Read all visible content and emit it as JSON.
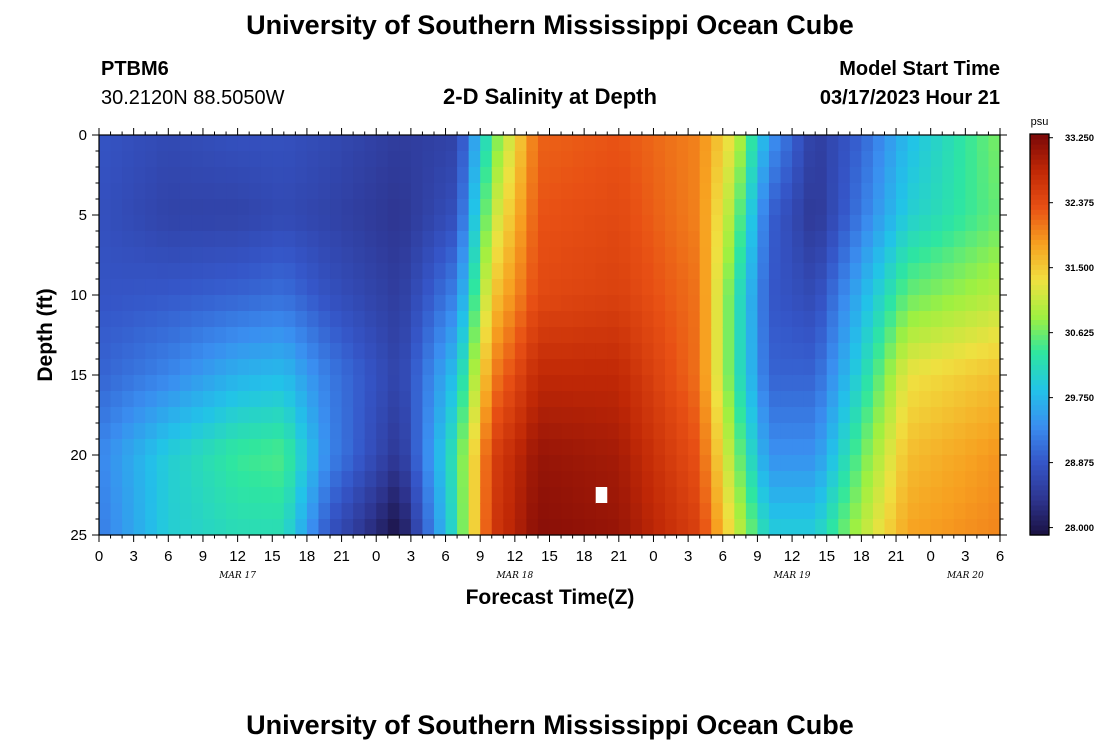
{
  "page": {
    "title": "University of Southern Mississippi Ocean Cube",
    "footer_title": "University of Southern Mississippi Ocean Cube",
    "station": "PTBM6",
    "coords": "30.2120N  88.5050W",
    "plot_title": "2-D Salinity at Depth",
    "model_start_label": "Model Start Time",
    "model_start_value": "03/17/2023 Hour 21"
  },
  "chart_data": {
    "type": "heatmap",
    "title": "2-D Salinity at Depth",
    "xlabel": "Forecast Time(Z)",
    "ylabel": "Depth (ft)",
    "x_start_hour_of_day": 0,
    "x_end_hour_of_day": 6,
    "x_span_hours": 78,
    "x_tick_step_hours": 3,
    "x_tick_labels": [
      "0",
      "3",
      "6",
      "9",
      "12",
      "15",
      "18",
      "21",
      "0",
      "3",
      "6",
      "9",
      "12",
      "15",
      "18",
      "21",
      "0",
      "3",
      "6",
      "9",
      "12",
      "15",
      "18",
      "21",
      "0",
      "3",
      "6"
    ],
    "date_labels": [
      {
        "text": "MAR 17",
        "hour": 12
      },
      {
        "text": "MAR 18",
        "hour": 36
      },
      {
        "text": "MAR 19",
        "hour": 60
      },
      {
        "text": "MAR 20",
        "hour": 75
      }
    ],
    "ylim": [
      0,
      25
    ],
    "y_inverted": true,
    "y_ticks": [
      0,
      5,
      10,
      15,
      20,
      25
    ],
    "colorbar": {
      "unit": "psu",
      "min": 27.9,
      "max": 33.3,
      "tick_values": [
        28.0,
        28.875,
        29.75,
        30.625,
        31.5,
        32.375,
        33.25
      ],
      "tick_labels": [
        "28.000",
        "28.875",
        "29.750",
        "30.625",
        "31.500",
        "32.375",
        "33.250"
      ],
      "colors": [
        "#1a1040",
        "#2e3590",
        "#3556c8",
        "#3a8ef0",
        "#22c3e8",
        "#2ee6a0",
        "#a0f040",
        "#f0e040",
        "#f7a020",
        "#e85014",
        "#c02806",
        "#7a0808"
      ]
    },
    "grid_resolution": {
      "time_step_hours": 1,
      "depth_step_ft": 1
    },
    "salinity_key_psu": {
      "depth_ft": [
        0,
        5,
        10,
        15,
        20,
        25
      ],
      "profiles": [
        {
          "hour": 0,
          "values": [
            28.85,
            28.8,
            28.85,
            29.0,
            29.3,
            29.2
          ]
        },
        {
          "hour": 6,
          "values": [
            28.7,
            28.6,
            28.9,
            29.3,
            30.0,
            30.0
          ]
        },
        {
          "hour": 12,
          "values": [
            28.8,
            28.6,
            29.0,
            29.7,
            30.4,
            30.2
          ]
        },
        {
          "hour": 16,
          "values": [
            28.8,
            28.7,
            29.1,
            29.8,
            30.5,
            30.2
          ]
        },
        {
          "hour": 20,
          "values": [
            28.7,
            28.6,
            28.8,
            29.2,
            29.3,
            28.8
          ]
        },
        {
          "hour": 26,
          "values": [
            28.5,
            28.4,
            28.5,
            28.6,
            28.4,
            27.9
          ]
        },
        {
          "hour": 31,
          "values": [
            28.6,
            28.8,
            29.3,
            29.9,
            30.4,
            30.3
          ]
        },
        {
          "hour": 34,
          "values": [
            30.5,
            31.0,
            31.5,
            32.0,
            32.5,
            32.6
          ]
        },
        {
          "hour": 38,
          "values": [
            32.2,
            32.3,
            32.4,
            32.8,
            33.1,
            33.2
          ]
        },
        {
          "hour": 45,
          "values": [
            32.3,
            32.4,
            32.5,
            32.8,
            33.0,
            33.1
          ]
        },
        {
          "hour": 52,
          "values": [
            32.0,
            32.0,
            32.1,
            32.1,
            32.3,
            32.5
          ]
        },
        {
          "hour": 55,
          "values": [
            31.2,
            30.8,
            30.4,
            30.4,
            30.8,
            31.2
          ]
        },
        {
          "hour": 58,
          "values": [
            29.5,
            29.0,
            28.9,
            29.0,
            29.4,
            30.0
          ]
        },
        {
          "hour": 62,
          "values": [
            28.5,
            28.4,
            28.7,
            29.0,
            29.4,
            30.0
          ]
        },
        {
          "hour": 66,
          "values": [
            29.0,
            29.2,
            29.7,
            30.1,
            30.6,
            31.0
          ]
        },
        {
          "hour": 70,
          "values": [
            29.8,
            30.0,
            30.6,
            31.3,
            31.6,
            31.8
          ]
        },
        {
          "hour": 78,
          "values": [
            30.7,
            30.6,
            31.0,
            31.6,
            31.9,
            32.0
          ]
        }
      ]
    },
    "missing_cells": [
      {
        "hour": 43,
        "depth_ft": 22
      }
    ]
  }
}
